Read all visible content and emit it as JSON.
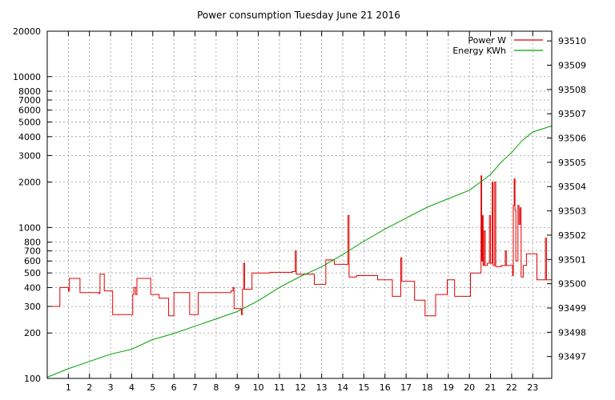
{
  "chart_data": {
    "type": "line",
    "title": "Power consumption Tuesday June 21 2016",
    "xlabel": "",
    "ylabel": "",
    "x_ticks": [
      1,
      2,
      3,
      4,
      5,
      6,
      7,
      8,
      9,
      10,
      11,
      12,
      13,
      14,
      15,
      16,
      17,
      18,
      19,
      20,
      21,
      22,
      23
    ],
    "xlim": [
      0,
      23.9
    ],
    "y_left": {
      "scale": "log",
      "lim": [
        100,
        20000
      ],
      "ticks": [
        100,
        200,
        300,
        400,
        500,
        600,
        700,
        800,
        1000,
        2000,
        3000,
        4000,
        5000,
        6000,
        7000,
        8000,
        10000,
        20000
      ]
    },
    "y_right": {
      "scale": "linear",
      "lim": [
        93496.1,
        93510.4
      ],
      "ticks": [
        93497,
        93498,
        93499,
        93500,
        93501,
        93502,
        93503,
        93504,
        93505,
        93506,
        93507,
        93508,
        93509,
        93510
      ]
    },
    "grid": true,
    "legend_position": "top-right",
    "series": [
      {
        "name": "Power W",
        "axis": "left",
        "color": "#e00000",
        "step": true,
        "points": [
          [
            0.0,
            300
          ],
          [
            0.6,
            400
          ],
          [
            1.0,
            380
          ],
          [
            1.05,
            460
          ],
          [
            1.55,
            370
          ],
          [
            2.45,
            365
          ],
          [
            2.5,
            490
          ],
          [
            2.7,
            380
          ],
          [
            3.1,
            265
          ],
          [
            4.05,
            360
          ],
          [
            4.1,
            400
          ],
          [
            4.18,
            360
          ],
          [
            4.25,
            460
          ],
          [
            4.9,
            360
          ],
          [
            5.3,
            340
          ],
          [
            5.75,
            260
          ],
          [
            6.0,
            370
          ],
          [
            6.75,
            265
          ],
          [
            7.15,
            370
          ],
          [
            8.7,
            380
          ],
          [
            8.8,
            400
          ],
          [
            8.85,
            290
          ],
          [
            9.2,
            265
          ],
          [
            9.25,
            390
          ],
          [
            9.3,
            580
          ],
          [
            9.35,
            390
          ],
          [
            9.7,
            500
          ],
          [
            10.55,
            505
          ],
          [
            11.6,
            510
          ],
          [
            11.75,
            700
          ],
          [
            11.8,
            490
          ],
          [
            12.65,
            420
          ],
          [
            13.2,
            610
          ],
          [
            13.6,
            570
          ],
          [
            14.25,
            1200
          ],
          [
            14.3,
            470
          ],
          [
            14.65,
            480
          ],
          [
            15.65,
            450
          ],
          [
            16.35,
            350
          ],
          [
            16.75,
            630
          ],
          [
            16.8,
            440
          ],
          [
            17.4,
            330
          ],
          [
            17.9,
            260
          ],
          [
            18.4,
            360
          ],
          [
            18.95,
            450
          ],
          [
            19.3,
            350
          ],
          [
            19.65,
            350
          ],
          [
            20.05,
            500
          ],
          [
            20.55,
            2200
          ],
          [
            20.58,
            600
          ],
          [
            20.62,
            1200
          ],
          [
            20.65,
            560
          ],
          [
            20.7,
            950
          ],
          [
            20.75,
            560
          ],
          [
            20.85,
            580
          ],
          [
            20.95,
            1200
          ],
          [
            21.0,
            580
          ],
          [
            21.08,
            2000
          ],
          [
            21.12,
            560
          ],
          [
            21.2,
            2000
          ],
          [
            21.25,
            550
          ],
          [
            21.5,
            560
          ],
          [
            21.65,
            560
          ],
          [
            21.7,
            700
          ],
          [
            21.75,
            560
          ],
          [
            22.05,
            480
          ],
          [
            22.08,
            1400
          ],
          [
            22.12,
            2100
          ],
          [
            22.16,
            1300
          ],
          [
            22.2,
            600
          ],
          [
            22.3,
            1400
          ],
          [
            22.35,
            1050
          ],
          [
            22.4,
            1350
          ],
          [
            22.45,
            470
          ],
          [
            22.55,
            560
          ],
          [
            22.7,
            670
          ],
          [
            23.2,
            450
          ],
          [
            23.6,
            850
          ],
          [
            23.65,
            450
          ],
          [
            23.9,
            450
          ]
        ]
      },
      {
        "name": "Energy KWh",
        "axis": "right",
        "color": "#00a000",
        "step": false,
        "points": [
          [
            0.0,
            93496.15
          ],
          [
            1.0,
            93496.5
          ],
          [
            2.0,
            93496.8
          ],
          [
            3.0,
            93497.1
          ],
          [
            4.0,
            93497.3
          ],
          [
            5.0,
            93497.7
          ],
          [
            6.0,
            93497.95
          ],
          [
            7.0,
            93498.25
          ],
          [
            8.0,
            93498.55
          ],
          [
            9.0,
            93498.85
          ],
          [
            10.0,
            93499.3
          ],
          [
            11.0,
            93499.85
          ],
          [
            12.0,
            93500.3
          ],
          [
            13.0,
            93500.7
          ],
          [
            14.0,
            93501.2
          ],
          [
            15.0,
            93501.75
          ],
          [
            16.0,
            93502.25
          ],
          [
            17.0,
            93502.7
          ],
          [
            18.0,
            93503.15
          ],
          [
            19.0,
            93503.5
          ],
          [
            20.0,
            93503.85
          ],
          [
            21.0,
            93504.5
          ],
          [
            21.5,
            93505.0
          ],
          [
            22.0,
            93505.4
          ],
          [
            22.5,
            93505.9
          ],
          [
            23.0,
            93506.25
          ],
          [
            23.9,
            93506.5
          ]
        ]
      }
    ]
  }
}
